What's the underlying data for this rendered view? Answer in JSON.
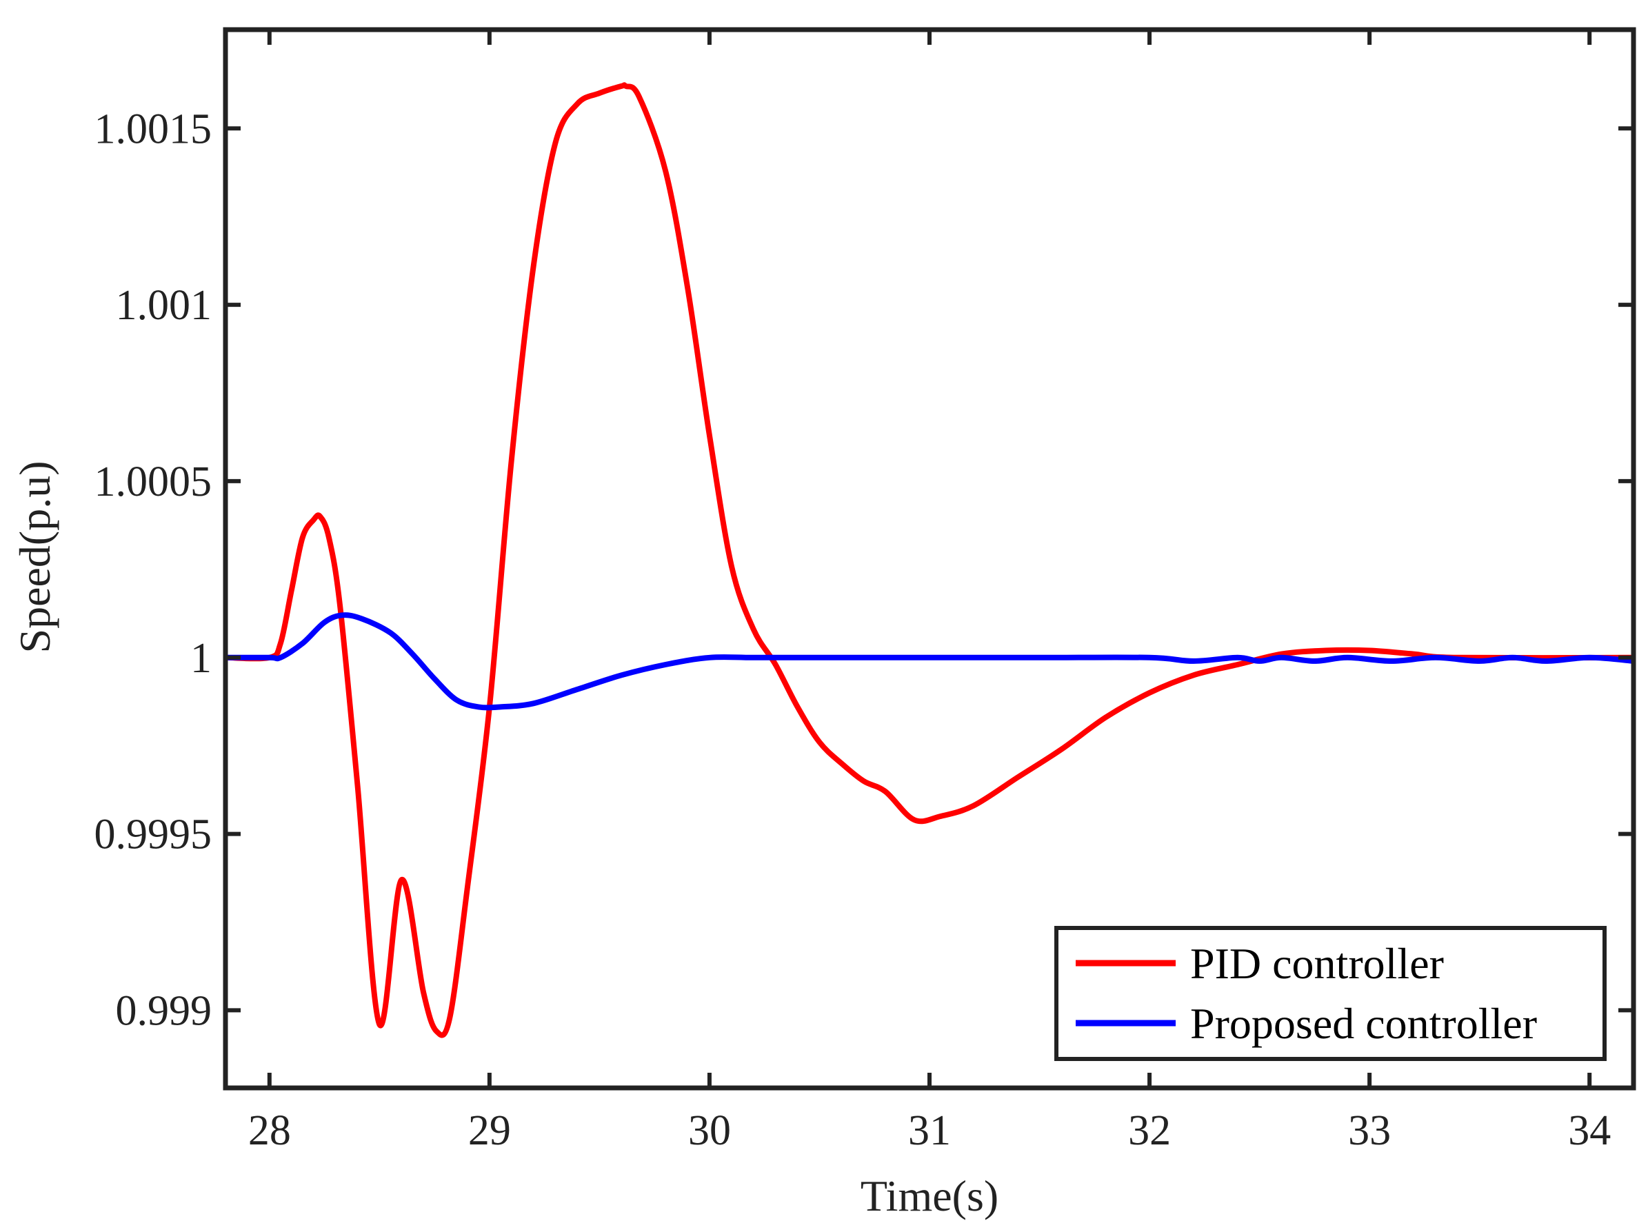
{
  "chart_data": {
    "type": "line",
    "title": "",
    "xlabel": "Time(s)",
    "ylabel": "Speed(p.u)",
    "xlim": [
      27.8,
      34.2
    ],
    "ylim": [
      0.99878,
      1.00178
    ],
    "xticks": [
      28,
      29,
      30,
      31,
      32,
      33,
      34
    ],
    "xtick_labels": [
      "28",
      "29",
      "30",
      "31",
      "32",
      "33",
      "34"
    ],
    "yticks": [
      0.999,
      0.9995,
      1,
      1.0005,
      1.001,
      1.0015
    ],
    "ytick_labels": [
      "0.999",
      "0.9995",
      "1",
      "1.0005",
      "1.001",
      "1.0015"
    ],
    "grid": false,
    "legend_position": "bottom-right",
    "series": [
      {
        "name": "PID controller",
        "color": "#ff0000",
        "x": [
          27.8,
          28.0,
          28.05,
          28.1,
          28.15,
          28.2,
          28.23,
          28.27,
          28.32,
          28.4,
          28.5,
          28.6,
          28.7,
          28.76,
          28.82,
          28.9,
          29.0,
          29.1,
          29.2,
          29.3,
          29.4,
          29.5,
          29.6,
          29.62,
          29.68,
          29.8,
          29.9,
          30.0,
          30.1,
          30.2,
          30.3,
          30.4,
          30.5,
          30.6,
          30.7,
          30.8,
          30.93,
          31.05,
          31.2,
          31.4,
          31.6,
          31.8,
          32.0,
          32.2,
          32.4,
          32.6,
          32.8,
          33.0,
          33.2,
          33.4,
          34.2
        ],
        "y": [
          1.0,
          1.0,
          1.00004,
          1.00019,
          1.00034,
          1.00039,
          1.0004,
          1.00034,
          1.00015,
          0.99964,
          0.99896,
          0.99937,
          0.99905,
          0.99894,
          0.99898,
          0.99935,
          0.99986,
          1.00056,
          1.00111,
          1.00146,
          1.00157,
          1.0016,
          1.00162,
          1.00162,
          1.00159,
          1.00138,
          1.00105,
          1.00063,
          1.00026,
          1.00008,
          0.99998,
          0.99986,
          0.99976,
          0.9997,
          0.99965,
          0.99962,
          0.99954,
          0.99955,
          0.99958,
          0.99966,
          0.99974,
          0.99983,
          0.9999,
          0.99995,
          0.99998,
          1.00001,
          1.00002,
          1.00002,
          1.00001,
          1.0,
          1.0
        ]
      },
      {
        "name": "Proposed controller",
        "color": "#0000ff",
        "x": [
          27.8,
          28.0,
          28.05,
          28.15,
          28.25,
          28.33,
          28.42,
          28.55,
          28.65,
          28.75,
          28.85,
          28.95,
          29.05,
          29.2,
          29.4,
          29.6,
          29.8,
          30.0,
          30.2,
          30.5,
          31.0,
          31.5,
          32.0,
          32.2,
          32.4,
          32.5,
          32.6,
          32.75,
          32.9,
          33.1,
          33.3,
          33.5,
          33.65,
          33.8,
          34.0,
          34.2
        ],
        "y": [
          1.0,
          1.0,
          1.0,
          1.00004,
          1.0001,
          1.00012,
          1.00011,
          1.00007,
          1.00001,
          0.99994,
          0.99988,
          0.99986,
          0.99986,
          0.99987,
          0.99991,
          0.99995,
          0.99998,
          1.0,
          1.0,
          1.0,
          1.0,
          1.0,
          1.0,
          0.99999,
          1.0,
          0.99999,
          1.0,
          0.99999,
          1.0,
          0.99999,
          1.0,
          0.99999,
          1.0,
          0.99999,
          1.0,
          0.99999
        ]
      }
    ]
  }
}
